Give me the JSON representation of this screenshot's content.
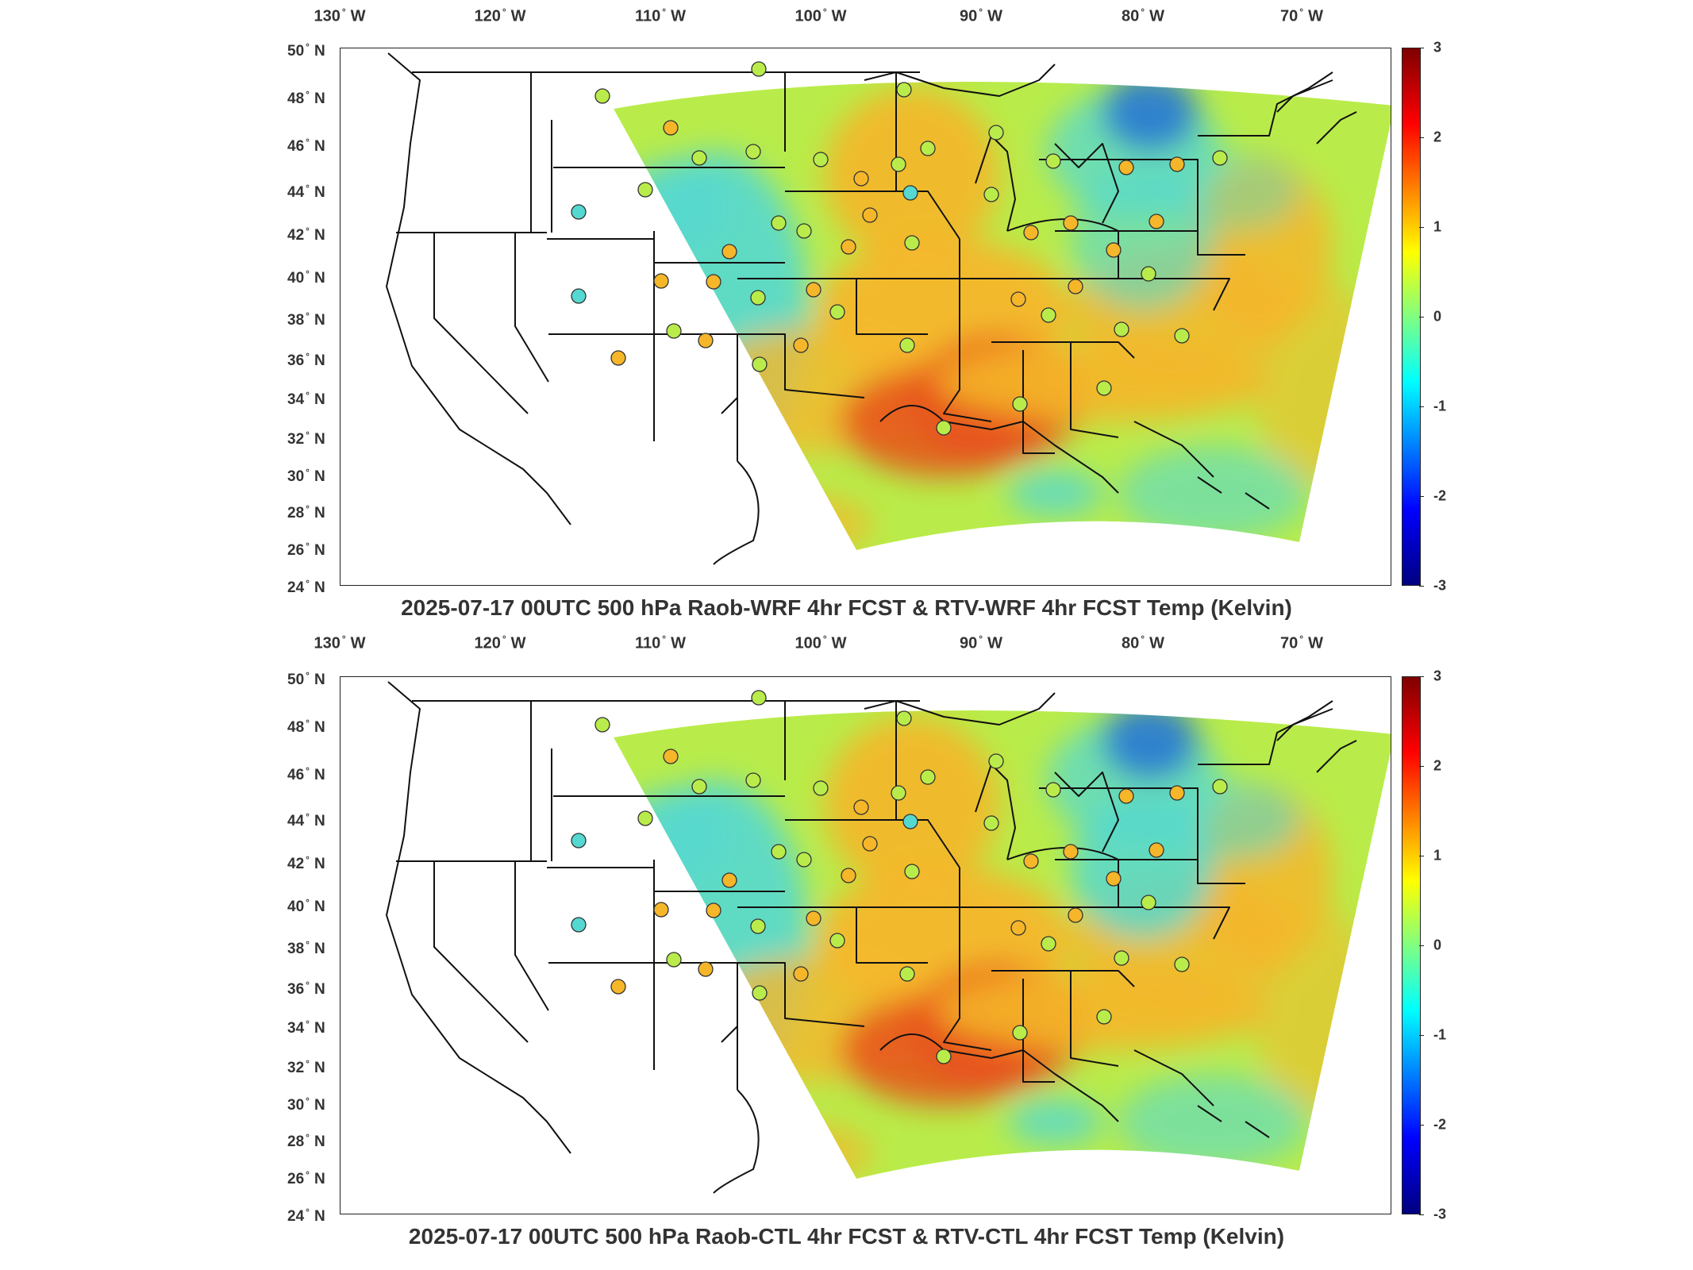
{
  "panels": [
    {
      "title": "2025-07-17 00UTC 500 hPa Raob-WRF 4hr FCST & RTV-WRF 4hr FCST Temp (Kelvin)"
    },
    {
      "title": "2025-07-17 00UTC 500 hPa Raob-CTL 4hr FCST & RTV-CTL 4hr FCST Temp (Kelvin)"
    }
  ],
  "lon_labels": [
    "130",
    "120",
    "110",
    "100",
    "90",
    "80",
    "70"
  ],
  "lon_suffix": "W",
  "lat_labels": [
    "50",
    "48",
    "46",
    "44",
    "42",
    "40",
    "38",
    "36",
    "34",
    "32",
    "30",
    "28",
    "26",
    "24"
  ],
  "lat_suffix": "N",
  "colorbar": {
    "ticks": [
      "3",
      "2",
      "1",
      "0",
      "-1",
      "-2",
      "-3"
    ],
    "range": [
      -3,
      3
    ],
    "colormap": "jet"
  },
  "colors": {
    "hot": "#e8501a",
    "warm": "#f5b62a",
    "neutral": "#b9ec4a",
    "cool": "#55d8d0",
    "cold": "#1e6bd6"
  }
}
